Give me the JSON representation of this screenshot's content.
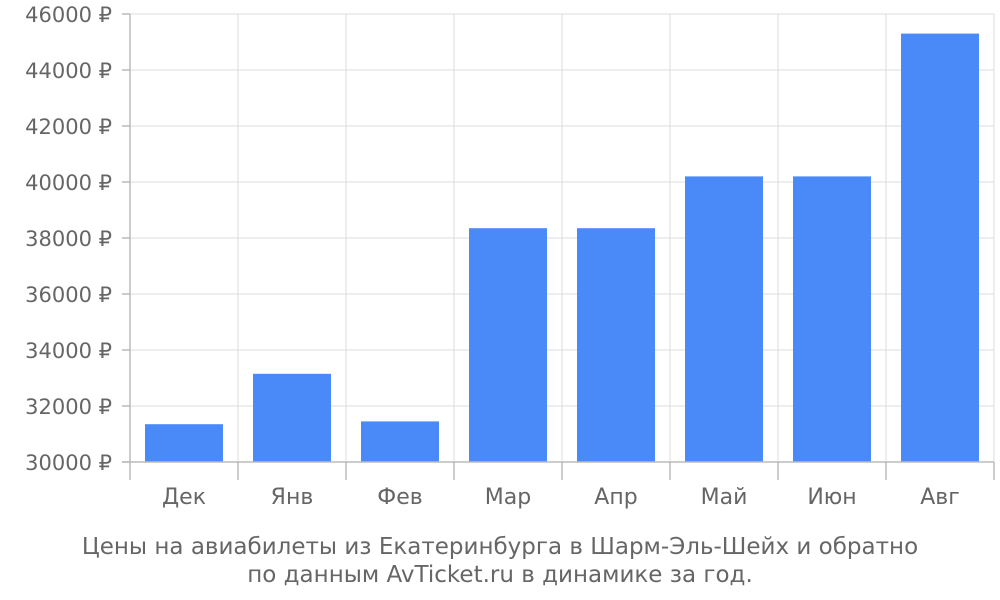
{
  "chart_data": {
    "type": "bar",
    "categories": [
      "Дек",
      "Янв",
      "Фев",
      "Мар",
      "Апр",
      "Май",
      "Июн",
      "Авг"
    ],
    "values": [
      31350,
      33150,
      31450,
      38350,
      38350,
      40200,
      40200,
      45300
    ],
    "ylim": [
      30000,
      46000
    ],
    "yticks": [
      30000,
      32000,
      34000,
      36000,
      38000,
      40000,
      42000,
      44000,
      46000
    ],
    "ytick_labels": [
      "30000 ₽",
      "32000 ₽",
      "34000 ₽",
      "36000 ₽",
      "38000 ₽",
      "40000 ₽",
      "42000 ₽",
      "44000 ₽",
      "46000 ₽"
    ],
    "grid": true,
    "bar_color": "#4a89f8",
    "caption_line1": "Цены на авиабилеты из Екатеринбурга в Шарм-Эль-Шейх и обратно",
    "caption_line2": "по данным AvTicket.ru в динамике за год."
  }
}
